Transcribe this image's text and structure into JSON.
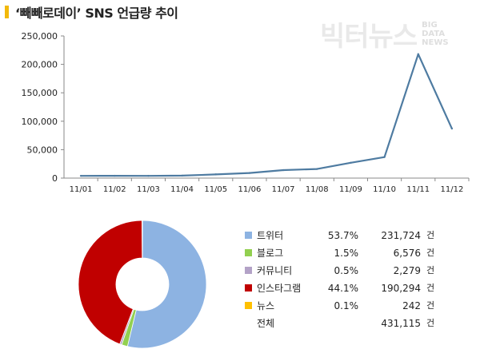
{
  "header": {
    "title": "‘빼빼로데이’ SNS 언급량 추이"
  },
  "watermark": {
    "ko": "빅터뉴스",
    "en1": "BIG",
    "en2": "DATA",
    "en3": "NEWS"
  },
  "chart_data": [
    {
      "type": "line",
      "categories": [
        "11/01",
        "11/02",
        "11/03",
        "11/04",
        "11/05",
        "11/06",
        "11/07",
        "11/08",
        "11/09",
        "11/10",
        "11/11",
        "11/12"
      ],
      "values": [
        4000,
        4100,
        4000,
        4300,
        6500,
        9000,
        14000,
        16000,
        27000,
        37000,
        218000,
        87000
      ],
      "ylim": [
        0,
        250000
      ],
      "yticks": [
        "0",
        "50,000",
        "100,000",
        "150,000",
        "200,000",
        "250,000"
      ],
      "grid": false,
      "color": "#4e7ba1"
    },
    {
      "type": "pie",
      "style": "donut",
      "labels": [
        "트위터",
        "블로그",
        "커뮤니티",
        "인스타그램",
        "뉴스"
      ],
      "percents": [
        "53.7%",
        "1.5%",
        "0.5%",
        "44.1%",
        "0.1%"
      ],
      "shares": [
        53.7,
        1.5,
        0.5,
        44.1,
        0.1
      ],
      "values": [
        "231,724",
        "6,576",
        "2,279",
        "190,294",
        "242"
      ],
      "colors": [
        "#8db3e2",
        "#92d050",
        "#b3a2c7",
        "#c00000",
        "#ffc000"
      ],
      "unit": "건",
      "total_label": "전체",
      "total_value": "431,115"
    }
  ]
}
